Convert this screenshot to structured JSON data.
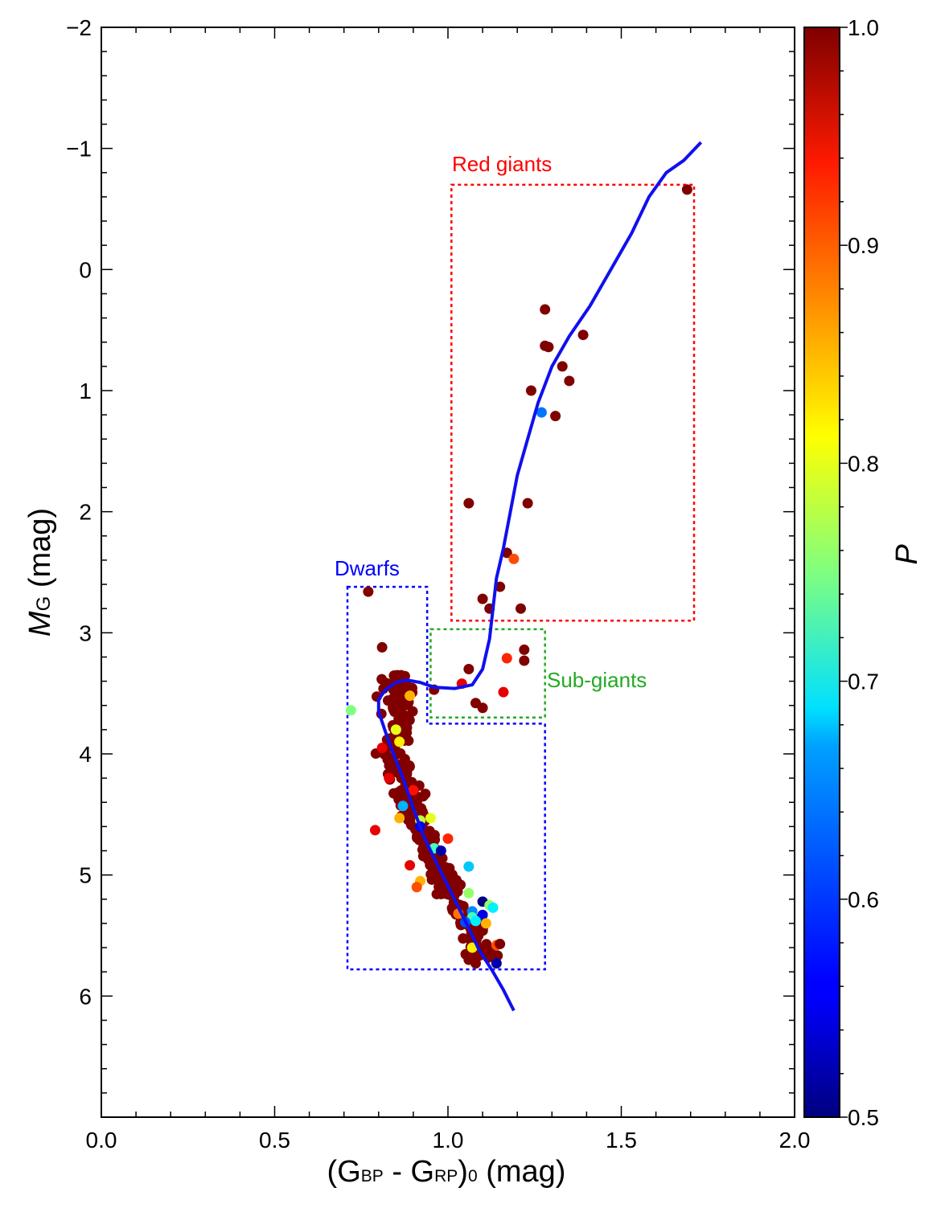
{
  "chart_data": {
    "type": "scatter",
    "title": "",
    "xlabel": {
      "main": "(G",
      "sub1": "BP",
      "minus": " - G",
      "sub2": "RP",
      "close": ")",
      "sub3": "0",
      "unit": " (mag)"
    },
    "ylabel": {
      "main": "M",
      "sub": "G",
      "unit": " (mag)"
    },
    "xlim": [
      0.0,
      2.0
    ],
    "ylim": [
      -2,
      7
    ],
    "y_inverted": true,
    "x_ticks": [
      "0.0",
      "0.5",
      "1.0",
      "1.5",
      "2.0"
    ],
    "x_tick_values": [
      0.0,
      0.5,
      1.0,
      1.5,
      2.0
    ],
    "y_ticks": [
      "−2",
      "−1",
      "0",
      "1",
      "2",
      "3",
      "4",
      "5",
      "6"
    ],
    "y_tick_values": [
      -2,
      -1,
      0,
      1,
      2,
      3,
      4,
      5,
      6
    ],
    "colorbar": {
      "label": "P",
      "range": [
        0.5,
        1.0
      ],
      "ticks": [
        "0.5",
        "0.6",
        "0.7",
        "0.8",
        "0.9",
        "1.0"
      ],
      "tick_values": [
        0.5,
        0.6,
        0.7,
        0.8,
        0.9,
        1.0
      ],
      "colormap": "jet"
    },
    "regions": [
      {
        "name": "Red giants",
        "x": [
          1.01,
          1.71
        ],
        "y": [
          -0.7,
          2.9
        ],
        "color": "#ff0000"
      },
      {
        "name": "Sub-giants",
        "x": [
          0.95,
          1.28
        ],
        "y": [
          2.97,
          3.7
        ],
        "color": "#22aa22"
      },
      {
        "name": "Dwarfs",
        "x": [
          0.71,
          1.28
        ],
        "y": [
          2.62,
          5.78
        ],
        "color": "#0000ff",
        "notch_x": 0.94,
        "notch_y": 3.75
      }
    ],
    "isochrone": {
      "name": "isochrone",
      "color": "#1010ee",
      "points": [
        [
          1.19,
          6.12
        ],
        [
          1.16,
          5.95
        ],
        [
          1.13,
          5.8
        ],
        [
          1.09,
          5.62
        ],
        [
          1.05,
          5.38
        ],
        [
          1.01,
          5.15
        ],
        [
          0.97,
          4.92
        ],
        [
          0.93,
          4.68
        ],
        [
          0.9,
          4.45
        ],
        [
          0.87,
          4.2
        ],
        [
          0.84,
          3.98
        ],
        [
          0.82,
          3.82
        ],
        [
          0.8,
          3.65
        ],
        [
          0.8,
          3.55
        ],
        [
          0.82,
          3.47
        ],
        [
          0.85,
          3.41
        ],
        [
          0.88,
          3.39
        ],
        [
          0.92,
          3.41
        ],
        [
          0.96,
          3.45
        ],
        [
          1.02,
          3.46
        ],
        [
          1.07,
          3.43
        ],
        [
          1.1,
          3.3
        ],
        [
          1.12,
          3.05
        ],
        [
          1.13,
          2.8
        ],
        [
          1.14,
          2.55
        ],
        [
          1.16,
          2.3
        ],
        [
          1.18,
          2.0
        ],
        [
          1.2,
          1.7
        ],
        [
          1.23,
          1.4
        ],
        [
          1.26,
          1.1
        ],
        [
          1.3,
          0.8
        ],
        [
          1.35,
          0.55
        ],
        [
          1.41,
          0.3
        ],
        [
          1.47,
          0.0
        ],
        [
          1.53,
          -0.3
        ],
        [
          1.58,
          -0.6
        ],
        [
          1.63,
          -0.8
        ],
        [
          1.68,
          -0.9
        ],
        [
          1.73,
          -1.05
        ]
      ]
    },
    "points": [
      {
        "x": 1.69,
        "y": -0.66,
        "p": 1.0
      },
      {
        "x": 1.28,
        "y": 0.33,
        "p": 1.0
      },
      {
        "x": 1.39,
        "y": 0.54,
        "p": 1.0
      },
      {
        "x": 1.28,
        "y": 0.63,
        "p": 1.0
      },
      {
        "x": 1.29,
        "y": 0.64,
        "p": 1.0
      },
      {
        "x": 1.33,
        "y": 0.8,
        "p": 1.0
      },
      {
        "x": 1.35,
        "y": 0.92,
        "p": 1.0
      },
      {
        "x": 1.24,
        "y": 1.0,
        "p": 1.0
      },
      {
        "x": 1.31,
        "y": 1.21,
        "p": 1.0
      },
      {
        "x": 1.27,
        "y": 1.18,
        "p": 0.62
      },
      {
        "x": 1.06,
        "y": 1.93,
        "p": 1.0
      },
      {
        "x": 1.23,
        "y": 1.93,
        "p": 1.0
      },
      {
        "x": 1.17,
        "y": 2.34,
        "p": 1.0
      },
      {
        "x": 1.19,
        "y": 2.39,
        "p": 0.9
      },
      {
        "x": 1.15,
        "y": 2.62,
        "p": 1.0
      },
      {
        "x": 1.1,
        "y": 2.72,
        "p": 1.0
      },
      {
        "x": 1.12,
        "y": 2.8,
        "p": 1.0
      },
      {
        "x": 1.21,
        "y": 2.8,
        "p": 1.0
      },
      {
        "x": 0.77,
        "y": 2.66,
        "p": 1.0
      },
      {
        "x": 1.22,
        "y": 3.14,
        "p": 1.0
      },
      {
        "x": 1.22,
        "y": 3.23,
        "p": 1.0
      },
      {
        "x": 1.17,
        "y": 3.21,
        "p": 0.92
      },
      {
        "x": 1.06,
        "y": 3.3,
        "p": 1.0
      },
      {
        "x": 1.16,
        "y": 3.49,
        "p": 0.95
      },
      {
        "x": 1.08,
        "y": 3.58,
        "p": 1.0
      },
      {
        "x": 1.1,
        "y": 3.62,
        "p": 1.0
      },
      {
        "x": 0.96,
        "y": 3.47,
        "p": 1.0
      },
      {
        "x": 0.81,
        "y": 3.12,
        "p": 1.0
      },
      {
        "x": 0.89,
        "y": 3.52,
        "p": 0.85
      },
      {
        "x": 0.72,
        "y": 3.64,
        "p": 0.75
      },
      {
        "x": 0.85,
        "y": 3.8,
        "p": 0.8
      },
      {
        "x": 0.86,
        "y": 3.9,
        "p": 0.82
      },
      {
        "x": 0.9,
        "y": 4.3,
        "p": 0.93
      },
      {
        "x": 0.87,
        "y": 4.43,
        "p": 0.65
      },
      {
        "x": 0.92,
        "y": 4.55,
        "p": 0.78
      },
      {
        "x": 0.86,
        "y": 4.53,
        "p": 0.85
      },
      {
        "x": 0.95,
        "y": 4.53,
        "p": 0.8
      },
      {
        "x": 0.92,
        "y": 4.6,
        "p": 0.55
      },
      {
        "x": 1.0,
        "y": 4.7,
        "p": 0.92
      },
      {
        "x": 0.96,
        "y": 4.78,
        "p": 0.72
      },
      {
        "x": 0.98,
        "y": 4.8,
        "p": 0.52
      },
      {
        "x": 0.89,
        "y": 4.92,
        "p": 0.95
      },
      {
        "x": 1.06,
        "y": 4.93,
        "p": 0.66
      },
      {
        "x": 0.92,
        "y": 5.05,
        "p": 0.85
      },
      {
        "x": 0.91,
        "y": 5.1,
        "p": 0.9
      },
      {
        "x": 1.06,
        "y": 5.15,
        "p": 0.76
      },
      {
        "x": 1.1,
        "y": 5.22,
        "p": 0.5
      },
      {
        "x": 1.12,
        "y": 5.25,
        "p": 0.76
      },
      {
        "x": 1.13,
        "y": 5.27,
        "p": 0.68
      },
      {
        "x": 1.07,
        "y": 5.3,
        "p": 0.63
      },
      {
        "x": 1.1,
        "y": 5.33,
        "p": 0.55
      },
      {
        "x": 1.03,
        "y": 5.32,
        "p": 0.88
      },
      {
        "x": 1.07,
        "y": 5.35,
        "p": 0.72
      },
      {
        "x": 1.08,
        "y": 5.38,
        "p": 0.68
      },
      {
        "x": 1.11,
        "y": 5.4,
        "p": 0.85
      },
      {
        "x": 1.05,
        "y": 5.39,
        "p": 0.6
      },
      {
        "x": 1.14,
        "y": 5.58,
        "p": 0.9
      },
      {
        "x": 1.15,
        "y": 5.57,
        "p": 1.0
      },
      {
        "x": 1.07,
        "y": 5.6,
        "p": 0.82
      },
      {
        "x": 1.14,
        "y": 5.73,
        "p": 0.52
      },
      {
        "x": 1.06,
        "y": 5.7,
        "p": 1.0
      },
      {
        "x": 1.08,
        "y": 5.73,
        "p": 1.0
      },
      {
        "x": 0.83,
        "y": 4.2,
        "p": 0.95
      },
      {
        "x": 0.79,
        "y": 4.63,
        "p": 0.95
      },
      {
        "x": 0.81,
        "y": 3.95,
        "p": 0.95
      },
      {
        "x": 1.04,
        "y": 3.42,
        "p": 0.95
      }
    ],
    "dense_cloud": {
      "color_p": 1.0,
      "seed": 7,
      "count": 330
    }
  },
  "labels": {
    "red_giants": "Red giants",
    "sub_giants": "Sub-giants",
    "dwarfs": "Dwarfs"
  }
}
